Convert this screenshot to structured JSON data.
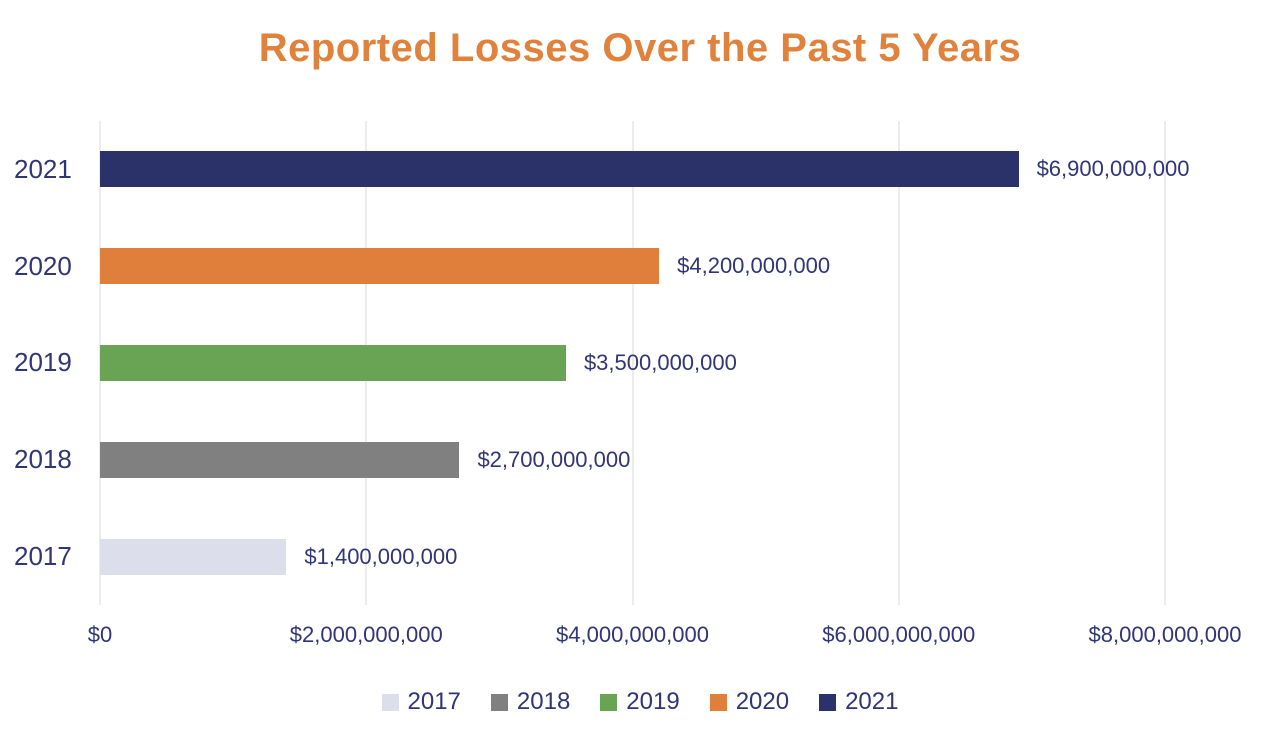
{
  "colors": {
    "background": "#FFFFFF",
    "title": "#E0813C",
    "text": "#2F3575",
    "gridline": "#D9D9D9"
  },
  "chart_data": {
    "type": "bar",
    "orientation": "horizontal",
    "title": "Reported Losses Over the Past 5 Years",
    "categories": [
      "2021",
      "2020",
      "2019",
      "2018",
      "2017"
    ],
    "values": [
      6900000000,
      4200000000,
      3500000000,
      2700000000,
      1400000000
    ],
    "value_labels": [
      "$6,900,000,000",
      "$4,200,000,000",
      "$3,500,000,000",
      "$2,700,000,000",
      "$1,400,000,000"
    ],
    "bar_colors": [
      "#2B3169",
      "#E07E3C",
      "#68A454",
      "#808080",
      "#DCDEEC"
    ],
    "xlabel": "",
    "ylabel": "",
    "xlim": [
      0,
      8000000000
    ],
    "x_ticks": [
      0,
      2000000000,
      4000000000,
      6000000000,
      8000000000
    ],
    "x_tick_labels": [
      "$0",
      "$2,000,000,000",
      "$4,000,000,000",
      "$6,000,000,000",
      "$8,000,000,000"
    ],
    "grid": "vertical-only",
    "legend": {
      "position": "bottom",
      "items": [
        {
          "label": "2017",
          "color": "#DCDEEC"
        },
        {
          "label": "2018",
          "color": "#808080"
        },
        {
          "label": "2019",
          "color": "#68A454"
        },
        {
          "label": "2020",
          "color": "#E07E3C"
        },
        {
          "label": "2021",
          "color": "#2B3169"
        }
      ]
    }
  }
}
